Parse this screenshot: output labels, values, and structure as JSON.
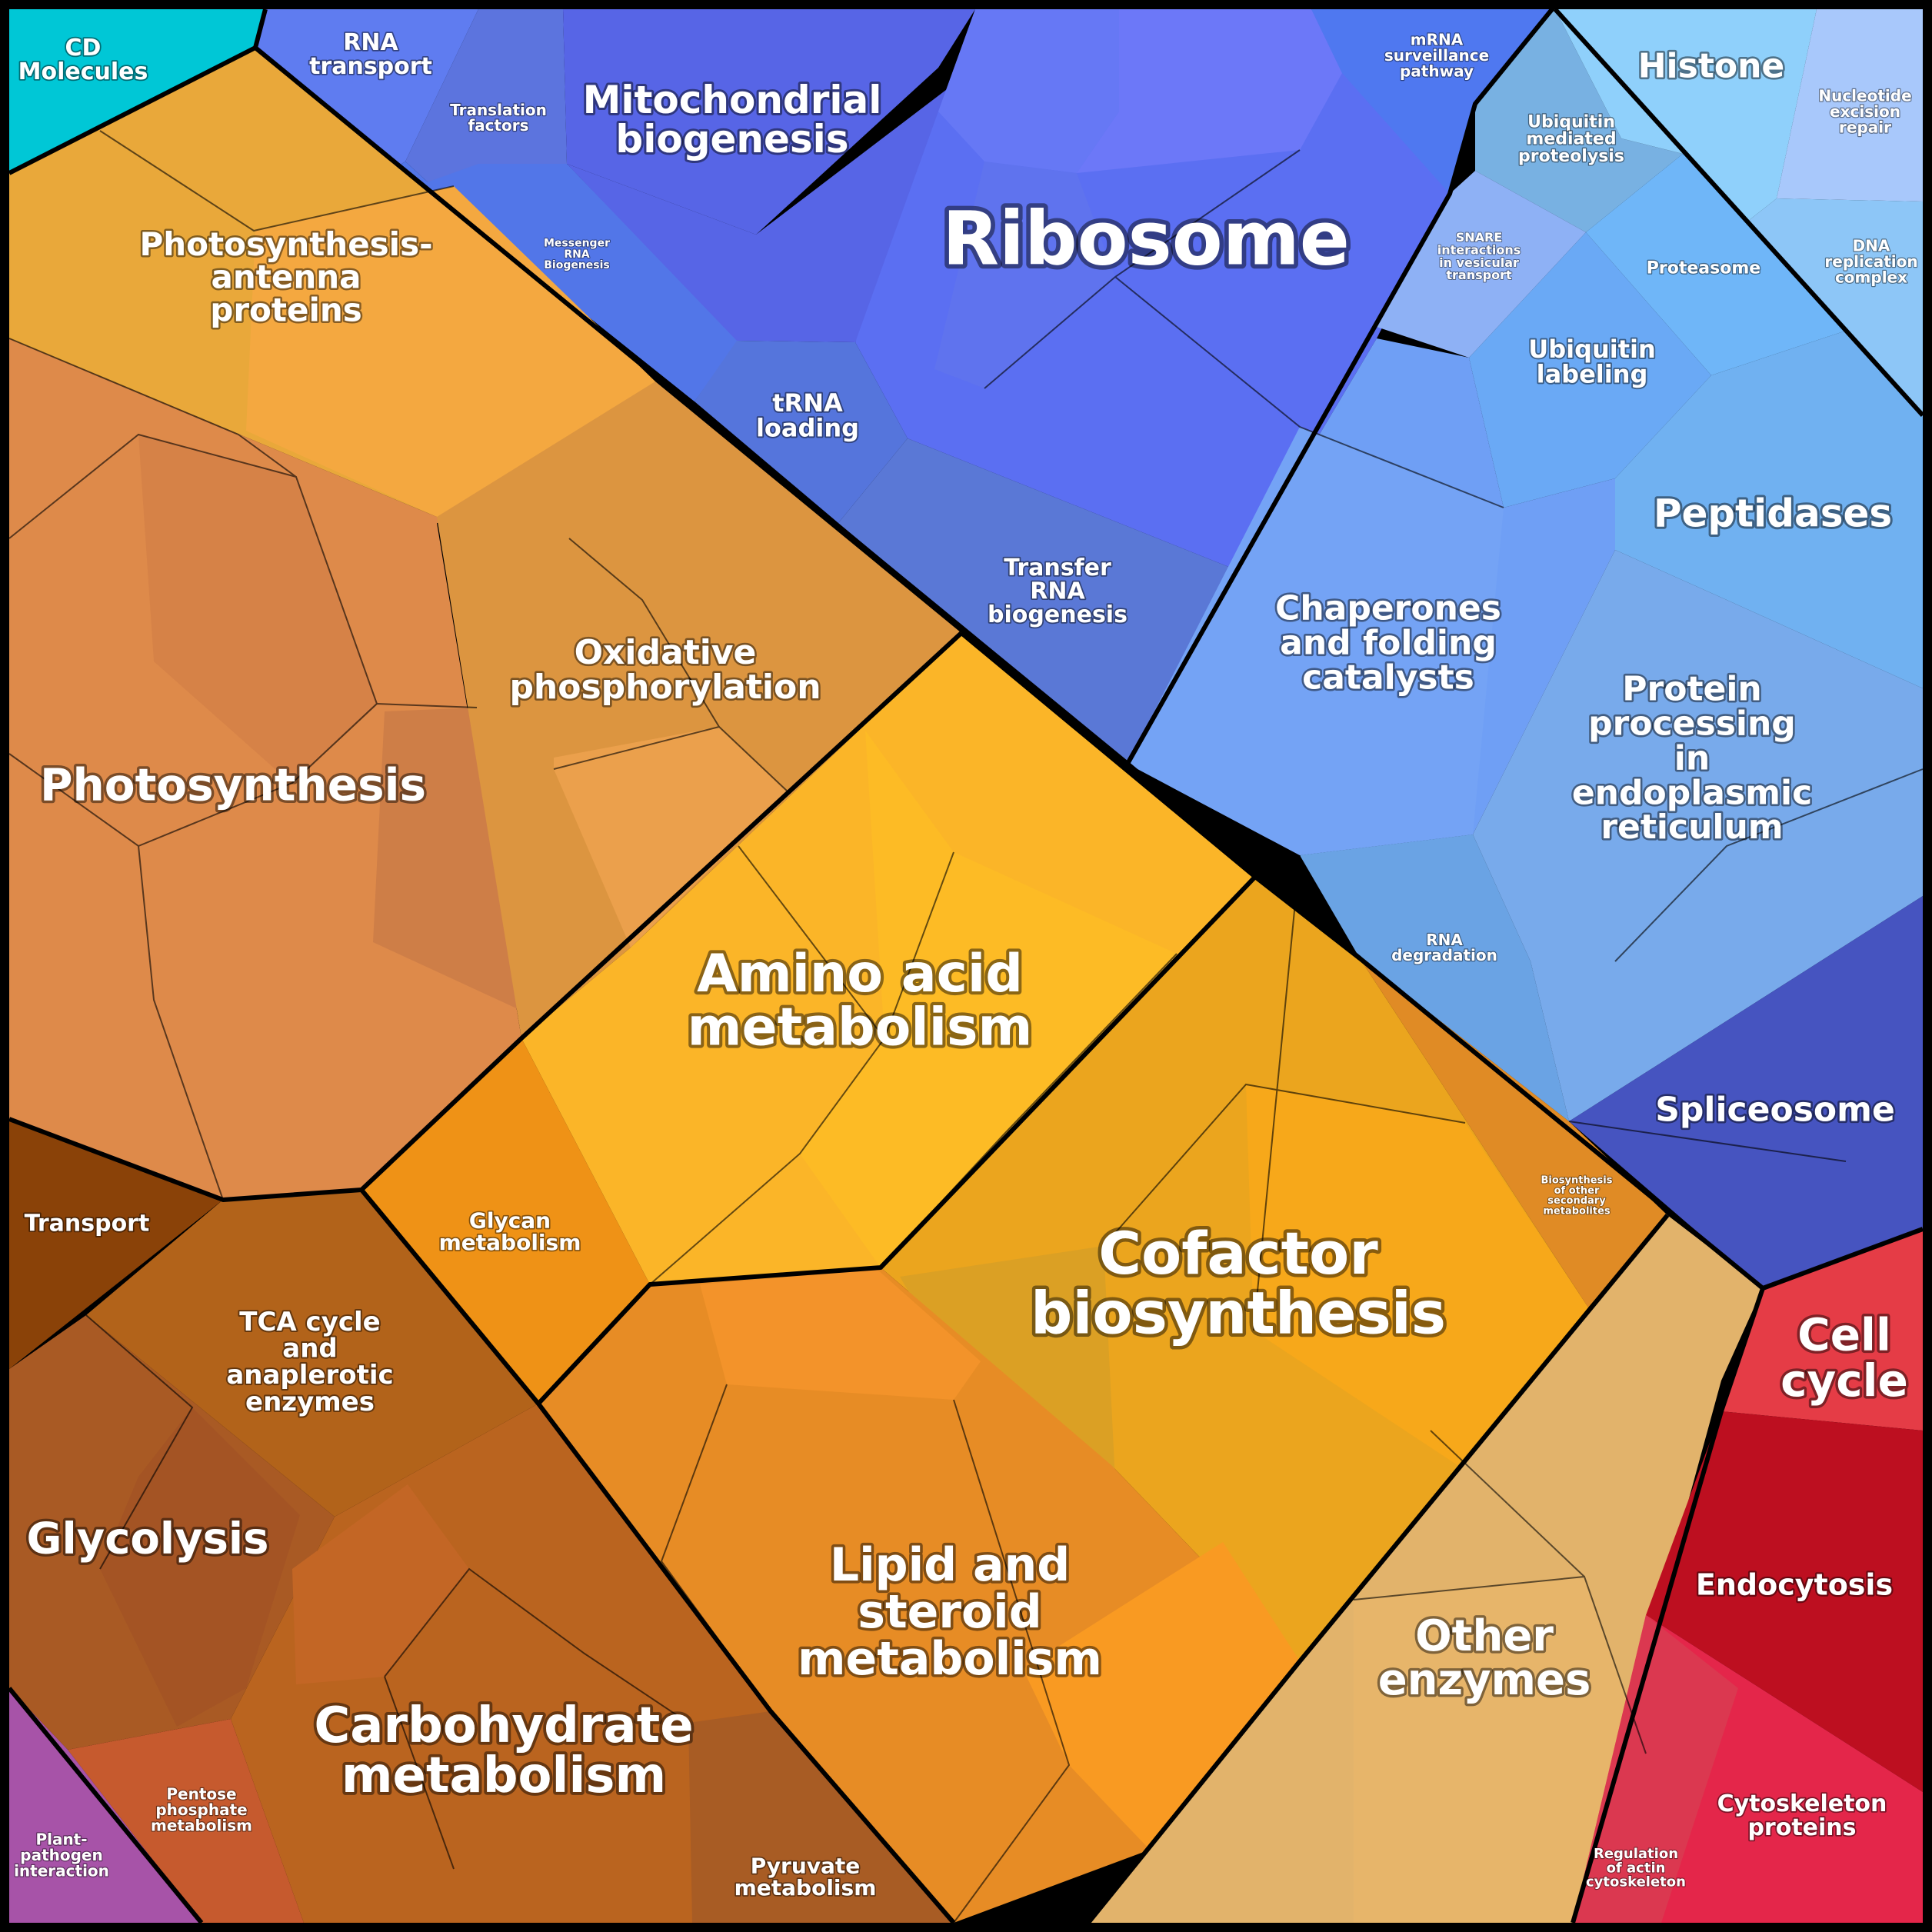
{
  "title": "",
  "categories": [
    {
      "id": "ribosome",
      "label": "Ribosome",
      "color": "#5b6ff2"
    },
    {
      "id": "mito",
      "label": "Mitochondrial biogenesis",
      "color": "#5765e6"
    },
    {
      "id": "rna_transport",
      "label": "RNA transport",
      "color": "#5f7cf0"
    },
    {
      "id": "translation_factors",
      "label": "Translation factors",
      "color": "#5c74de"
    },
    {
      "id": "messenger_rna",
      "label": "Messenger RNA Biogenesis",
      "color": "#5276e8"
    },
    {
      "id": "trna_loading",
      "label": "tRNA loading",
      "color": "#5575dc"
    },
    {
      "id": "transfer_rna",
      "label": "Transfer RNA biogenesis",
      "color": "#5a78d6"
    },
    {
      "id": "mrna_surveillance",
      "label": "mRNA surveillance pathway",
      "color": "#4f78f0"
    },
    {
      "id": "histone",
      "label": "Histone",
      "color": "#8fd0fb"
    },
    {
      "id": "nucleotide_excision",
      "label": "Nucleotide excision repair",
      "color": "#a8c8fb"
    },
    {
      "id": "dna_replication",
      "label": "DNA replication complex",
      "color": "#8dc6f7"
    },
    {
      "id": "ubiquitin_proteolysis",
      "label": "Ubiquitin mediated proteolysis",
      "color": "#78b1e2"
    },
    {
      "id": "snare",
      "label": "SNARE interactions in vesicular transport",
      "color": "#8eb1f5"
    },
    {
      "id": "proteasome",
      "label": "Proteasome",
      "color": "#6fb6f8"
    },
    {
      "id": "ubiquitin_labeling",
      "label": "Ubiquitin labeling",
      "color": "#6aa9f5"
    },
    {
      "id": "peptidases",
      "label": "Peptidases",
      "color": "#70b1f1"
    },
    {
      "id": "chaperones",
      "label": "Chaperones and folding catalysts",
      "color": "#6f9ff5"
    },
    {
      "id": "er_processing",
      "label": "Protein processing in endoplasmic reticulum",
      "color": "#78aaeb"
    },
    {
      "id": "rna_degradation",
      "label": "RNA degradation",
      "color": "#6aa3e4"
    },
    {
      "id": "spliceosome",
      "label": "Spliceosome",
      "color": "#4654c0"
    },
    {
      "id": "cd_molecules",
      "label": "CD Molecules",
      "color": "#00c7d6"
    },
    {
      "id": "photo_antenna",
      "label": "Photosynthesis-antenna proteins",
      "color": "#e9a83a"
    },
    {
      "id": "photosynthesis",
      "label": "Photosynthesis",
      "color": "#de8a4a"
    },
    {
      "id": "oxphos",
      "label": "Oxidative phosphorylation",
      "color": "#dc9540"
    },
    {
      "id": "amino_acid",
      "label": "Amino acid metabolism",
      "color": "#fbb528"
    },
    {
      "id": "cofactor",
      "label": "Cofactor biosynthesis",
      "color": "#eba51e"
    },
    {
      "id": "secondary_metabolites",
      "label": "Biosynthesis of other secondary metabolites",
      "color": "#e08b25"
    },
    {
      "id": "glycan",
      "label": "Glycan metabolism",
      "color": "#ef9216"
    },
    {
      "id": "lipid",
      "label": "Lipid and steroid metabolism",
      "color": "#e78c25"
    },
    {
      "id": "other_enzymes",
      "label": "Other enzymes",
      "color": "#e2b36b"
    },
    {
      "id": "transport",
      "label": "Transport",
      "color": "#8a4208"
    },
    {
      "id": "tca",
      "label": "TCA cycle and anaplerotic enzymes",
      "color": "#b2631a"
    },
    {
      "id": "glycolysis",
      "label": "Glycolysis",
      "color": "#a95a24"
    },
    {
      "id": "carbohydrate",
      "label": "Carbohydrate metabolism",
      "color": "#ba641f"
    },
    {
      "id": "pentose",
      "label": "Pentose phosphate metabolism",
      "color": "#c65a2e"
    },
    {
      "id": "pyruvate",
      "label": "Pyruvate metabolism",
      "color": "#a85c24"
    },
    {
      "id": "plant_pathogen",
      "label": "Plant-pathogen interaction",
      "color": "#a753a8"
    },
    {
      "id": "cell_cycle",
      "label": "Cell cycle",
      "color": "#e53c46"
    },
    {
      "id": "endocytosis",
      "label": "Endocytosis",
      "color": "#bd0f20"
    },
    {
      "id": "cytoskeleton",
      "label": "Cytoskeleton proteins",
      "color": "#e4264a"
    },
    {
      "id": "actin",
      "label": "Regulation of actin cytoskeleton",
      "color": "#db3850"
    }
  ]
}
